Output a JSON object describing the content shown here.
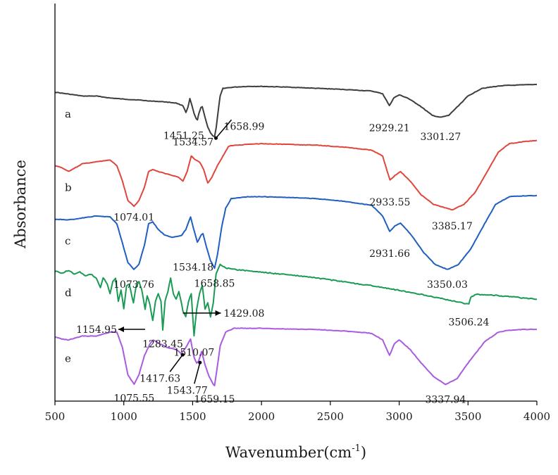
{
  "chart_data": {
    "type": "line",
    "title": "",
    "xlabel": "Wavenumber(cm",
    "xlabel_sup": "-1",
    "xlabel_end": ")",
    "ylabel": "Absorbance",
    "xlim": [
      500,
      4000
    ],
    "x_ticks": [
      "500",
      "1000",
      "1500",
      "2000",
      "2500",
      "3000",
      "3500",
      "4000"
    ],
    "series": [
      {
        "name": "a",
        "color": "#3d3d3d",
        "points": [
          [
            500,
            0.78
          ],
          [
            600,
            0.775
          ],
          [
            700,
            0.77
          ],
          [
            800,
            0.77
          ],
          [
            900,
            0.765
          ],
          [
            1000,
            0.762
          ],
          [
            1100,
            0.76
          ],
          [
            1200,
            0.757
          ],
          [
            1300,
            0.755
          ],
          [
            1380,
            0.752
          ],
          [
            1430,
            0.745
          ],
          [
            1451,
            0.728
          ],
          [
            1465,
            0.74
          ],
          [
            1480,
            0.763
          ],
          [
            1495,
            0.745
          ],
          [
            1510,
            0.725
          ],
          [
            1525,
            0.712
          ],
          [
            1535,
            0.708
          ],
          [
            1545,
            0.725
          ],
          [
            1560,
            0.74
          ],
          [
            1570,
            0.742
          ],
          [
            1590,
            0.715
          ],
          [
            1610,
            0.69
          ],
          [
            1630,
            0.675
          ],
          [
            1645,
            0.668
          ],
          [
            1659,
            0.665
          ],
          [
            1672,
            0.69
          ],
          [
            1685,
            0.73
          ],
          [
            1700,
            0.77
          ],
          [
            1720,
            0.79
          ],
          [
            1800,
            0.793
          ],
          [
            1900,
            0.795
          ],
          [
            2000,
            0.795
          ],
          [
            2200,
            0.793
          ],
          [
            2400,
            0.79
          ],
          [
            2600,
            0.787
          ],
          [
            2800,
            0.783
          ],
          [
            2880,
            0.776
          ],
          [
            2929,
            0.745
          ],
          [
            2960,
            0.765
          ],
          [
            3000,
            0.773
          ],
          [
            3060,
            0.765
          ],
          [
            3150,
            0.745
          ],
          [
            3240,
            0.72
          ],
          [
            3301,
            0.715
          ],
          [
            3360,
            0.72
          ],
          [
            3430,
            0.745
          ],
          [
            3500,
            0.77
          ],
          [
            3600,
            0.79
          ],
          [
            3750,
            0.797
          ],
          [
            4000,
            0.8
          ]
        ]
      },
      {
        "name": "b",
        "color": "#e0463c",
        "points": [
          [
            500,
            0.59
          ],
          [
            550,
            0.585
          ],
          [
            600,
            0.575
          ],
          [
            650,
            0.585
          ],
          [
            700,
            0.595
          ],
          [
            800,
            0.6
          ],
          [
            900,
            0.605
          ],
          [
            950,
            0.59
          ],
          [
            990,
            0.55
          ],
          [
            1030,
            0.5
          ],
          [
            1074,
            0.485
          ],
          [
            1110,
            0.5
          ],
          [
            1150,
            0.535
          ],
          [
            1180,
            0.575
          ],
          [
            1210,
            0.58
          ],
          [
            1250,
            0.575
          ],
          [
            1300,
            0.57
          ],
          [
            1350,
            0.565
          ],
          [
            1400,
            0.56
          ],
          [
            1430,
            0.55
          ],
          [
            1460,
            0.575
          ],
          [
            1490,
            0.615
          ],
          [
            1520,
            0.605
          ],
          [
            1550,
            0.6
          ],
          [
            1580,
            0.58
          ],
          [
            1610,
            0.545
          ],
          [
            1640,
            0.56
          ],
          [
            1680,
            0.59
          ],
          [
            1720,
            0.615
          ],
          [
            1760,
            0.64
          ],
          [
            1800,
            0.643
          ],
          [
            1900,
            0.645
          ],
          [
            2000,
            0.647
          ],
          [
            2200,
            0.645
          ],
          [
            2400,
            0.643
          ],
          [
            2600,
            0.638
          ],
          [
            2800,
            0.63
          ],
          [
            2880,
            0.615
          ],
          [
            2933,
            0.553
          ],
          [
            2970,
            0.565
          ],
          [
            3010,
            0.575
          ],
          [
            3080,
            0.55
          ],
          [
            3160,
            0.515
          ],
          [
            3250,
            0.49
          ],
          [
            3385,
            0.476
          ],
          [
            3470,
            0.49
          ],
          [
            3550,
            0.52
          ],
          [
            3640,
            0.575
          ],
          [
            3720,
            0.625
          ],
          [
            3800,
            0.647
          ],
          [
            3900,
            0.652
          ],
          [
            4000,
            0.655
          ]
        ]
      },
      {
        "name": "c",
        "color": "#1f5fbf",
        "points": [
          [
            500,
            0.452
          ],
          [
            600,
            0.45
          ],
          [
            700,
            0.455
          ],
          [
            800,
            0.46
          ],
          [
            900,
            0.458
          ],
          [
            950,
            0.44
          ],
          [
            990,
            0.39
          ],
          [
            1030,
            0.34
          ],
          [
            1073,
            0.322
          ],
          [
            1110,
            0.335
          ],
          [
            1150,
            0.385
          ],
          [
            1180,
            0.44
          ],
          [
            1210,
            0.445
          ],
          [
            1250,
            0.425
          ],
          [
            1300,
            0.41
          ],
          [
            1350,
            0.405
          ],
          [
            1420,
            0.41
          ],
          [
            1450,
            0.425
          ],
          [
            1485,
            0.458
          ],
          [
            1505,
            0.43
          ],
          [
            1534,
            0.392
          ],
          [
            1560,
            0.41
          ],
          [
            1575,
            0.415
          ],
          [
            1600,
            0.38
          ],
          [
            1630,
            0.345
          ],
          [
            1659,
            0.325
          ],
          [
            1680,
            0.36
          ],
          [
            1710,
            0.43
          ],
          [
            1740,
            0.48
          ],
          [
            1780,
            0.505
          ],
          [
            1900,
            0.51
          ],
          [
            2000,
            0.51
          ],
          [
            2200,
            0.508
          ],
          [
            2400,
            0.505
          ],
          [
            2600,
            0.498
          ],
          [
            2800,
            0.488
          ],
          [
            2880,
            0.46
          ],
          [
            2931,
            0.42
          ],
          [
            2970,
            0.435
          ],
          [
            3010,
            0.442
          ],
          [
            3090,
            0.41
          ],
          [
            3180,
            0.365
          ],
          [
            3260,
            0.335
          ],
          [
            3350,
            0.322
          ],
          [
            3430,
            0.335
          ],
          [
            3520,
            0.375
          ],
          [
            3620,
            0.44
          ],
          [
            3700,
            0.49
          ],
          [
            3800,
            0.51
          ],
          [
            3900,
            0.512
          ],
          [
            4000,
            0.513
          ]
        ]
      },
      {
        "name": "d",
        "color": "#1a9a55",
        "points": [
          [
            500,
            0.318
          ],
          [
            550,
            0.312
          ],
          [
            600,
            0.32
          ],
          [
            640,
            0.31
          ],
          [
            680,
            0.315
          ],
          [
            720,
            0.305
          ],
          [
            760,
            0.31
          ],
          [
            800,
            0.3
          ],
          [
            830,
            0.275
          ],
          [
            850,
            0.3
          ],
          [
            880,
            0.285
          ],
          [
            900,
            0.26
          ],
          [
            920,
            0.29
          ],
          [
            940,
            0.3
          ],
          [
            960,
            0.24
          ],
          [
            980,
            0.27
          ],
          [
            1000,
            0.22
          ],
          [
            1020,
            0.28
          ],
          [
            1040,
            0.285
          ],
          [
            1070,
            0.235
          ],
          [
            1090,
            0.28
          ],
          [
            1110,
            0.29
          ],
          [
            1130,
            0.27
          ],
          [
            1155,
            0.22
          ],
          [
            1170,
            0.255
          ],
          [
            1190,
            0.23
          ],
          [
            1210,
            0.19
          ],
          [
            1230,
            0.24
          ],
          [
            1250,
            0.26
          ],
          [
            1270,
            0.24
          ],
          [
            1283,
            0.165
          ],
          [
            1300,
            0.24
          ],
          [
            1320,
            0.265
          ],
          [
            1340,
            0.3
          ],
          [
            1360,
            0.26
          ],
          [
            1380,
            0.245
          ],
          [
            1400,
            0.265
          ],
          [
            1430,
            0.215
          ],
          [
            1450,
            0.2
          ],
          [
            1470,
            0.24
          ],
          [
            1490,
            0.26
          ],
          [
            1510,
            0.15
          ],
          [
            1530,
            0.22
          ],
          [
            1550,
            0.26
          ],
          [
            1570,
            0.28
          ],
          [
            1590,
            0.22
          ],
          [
            1610,
            0.235
          ],
          [
            1630,
            0.2
          ],
          [
            1650,
            0.235
          ],
          [
            1670,
            0.31
          ],
          [
            1700,
            0.335
          ],
          [
            1750,
            0.325
          ],
          [
            1800,
            0.322
          ],
          [
            2000,
            0.315
          ],
          [
            2200,
            0.308
          ],
          [
            2400,
            0.3
          ],
          [
            2600,
            0.29
          ],
          [
            2800,
            0.28
          ],
          [
            3000,
            0.268
          ],
          [
            3200,
            0.255
          ],
          [
            3400,
            0.24
          ],
          [
            3506,
            0.232
          ],
          [
            3520,
            0.25
          ],
          [
            3560,
            0.258
          ],
          [
            3700,
            0.255
          ],
          [
            3850,
            0.25
          ],
          [
            4000,
            0.245
          ]
        ]
      },
      {
        "name": "e",
        "color": "#a95be0",
        "points": [
          [
            500,
            0.148
          ],
          [
            550,
            0.142
          ],
          [
            600,
            0.14
          ],
          [
            650,
            0.145
          ],
          [
            700,
            0.15
          ],
          [
            800,
            0.15
          ],
          [
            900,
            0.16
          ],
          [
            950,
            0.16
          ],
          [
            990,
            0.12
          ],
          [
            1030,
            0.05
          ],
          [
            1075,
            0.025
          ],
          [
            1110,
            0.05
          ],
          [
            1150,
            0.1
          ],
          [
            1190,
            0.13
          ],
          [
            1215,
            0.14
          ],
          [
            1260,
            0.13
          ],
          [
            1320,
            0.12
          ],
          [
            1380,
            0.115
          ],
          [
            1417,
            0.105
          ],
          [
            1450,
            0.12
          ],
          [
            1485,
            0.142
          ],
          [
            1510,
            0.095
          ],
          [
            1530,
            0.08
          ],
          [
            1543,
            0.085
          ],
          [
            1565,
            0.11
          ],
          [
            1590,
            0.075
          ],
          [
            1620,
            0.045
          ],
          [
            1650,
            0.025
          ],
          [
            1659,
            0.022
          ],
          [
            1675,
            0.06
          ],
          [
            1700,
            0.125
          ],
          [
            1740,
            0.16
          ],
          [
            1800,
            0.17
          ],
          [
            2000,
            0.17
          ],
          [
            2200,
            0.168
          ],
          [
            2400,
            0.167
          ],
          [
            2600,
            0.163
          ],
          [
            2800,
            0.157
          ],
          [
            2880,
            0.14
          ],
          [
            2930,
            0.1
          ],
          [
            2965,
            0.13
          ],
          [
            3000,
            0.14
          ],
          [
            3080,
            0.115
          ],
          [
            3160,
            0.08
          ],
          [
            3250,
            0.045
          ],
          [
            3337,
            0.025
          ],
          [
            3420,
            0.04
          ],
          [
            3510,
            0.085
          ],
          [
            3620,
            0.135
          ],
          [
            3720,
            0.16
          ],
          [
            3800,
            0.165
          ],
          [
            3900,
            0.167
          ],
          [
            4000,
            0.167
          ]
        ]
      }
    ],
    "annotations": [
      {
        "text": "1451.25",
        "series": "a",
        "x": 1451
      },
      {
        "text": "1534.57",
        "series": "a",
        "x": 1535
      },
      {
        "text": "1658.99",
        "series": "a",
        "x": 1659
      },
      {
        "text": "2929.21",
        "series": "a",
        "x": 2929
      },
      {
        "text": "3301.27",
        "series": "a",
        "x": 3301
      },
      {
        "text": "1074.01",
        "series": "b",
        "x": 1074
      },
      {
        "text": "2933.55",
        "series": "b",
        "x": 2933
      },
      {
        "text": "3385.17",
        "series": "b",
        "x": 3385
      },
      {
        "text": "1534.18",
        "series": "c",
        "x": 1534
      },
      {
        "text": "1073.76",
        "series": "c",
        "x": 1073
      },
      {
        "text": "1658.85",
        "series": "c",
        "x": 1659
      },
      {
        "text": "2931.66",
        "series": "c",
        "x": 2931
      },
      {
        "text": "3350.03",
        "series": "c",
        "x": 3350
      },
      {
        "text": "1154.95",
        "series": "d",
        "x": 1155
      },
      {
        "text": "1283.45",
        "series": "d",
        "x": 1283
      },
      {
        "text": "1510.07",
        "series": "d",
        "x": 1510
      },
      {
        "text": "1429.08",
        "series": "d",
        "x": 1429
      },
      {
        "text": "3506.24",
        "series": "d",
        "x": 3506
      },
      {
        "text": "1417.63",
        "series": "e",
        "x": 1417
      },
      {
        "text": "1543.77",
        "series": "e",
        "x": 1543
      },
      {
        "text": "1075.55",
        "series": "e",
        "x": 1075
      },
      {
        "text": "1659.15",
        "series": "e",
        "x": 1659
      },
      {
        "text": "3337.94",
        "series": "e",
        "x": 3337
      }
    ]
  }
}
